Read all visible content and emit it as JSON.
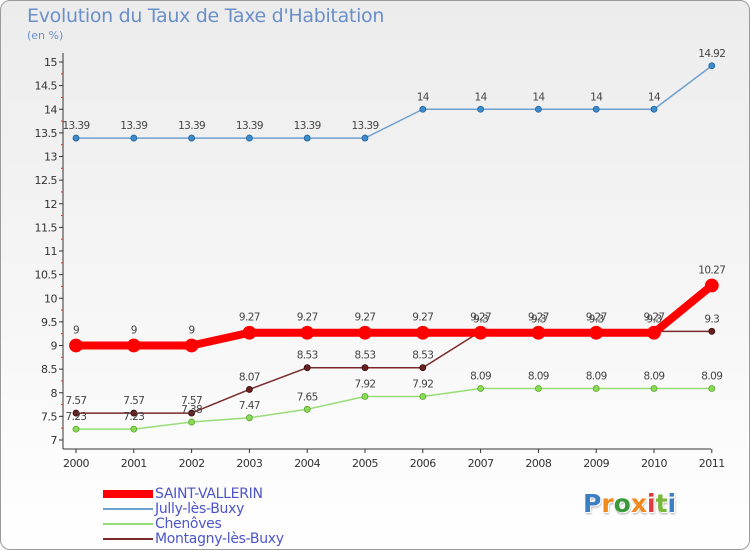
{
  "title": "Evolution du Taux de Taxe d'Habitation",
  "subtitle": "(en %)",
  "chart_data": {
    "type": "line",
    "title": "Evolution du Taux de Taxe d'Habitation",
    "ylabel": "(en %)",
    "xlabel": "",
    "categories": [
      "2000",
      "2001",
      "2002",
      "2003",
      "2004",
      "2005",
      "2006",
      "2007",
      "2008",
      "2009",
      "2010",
      "2011"
    ],
    "ylim": [
      7,
      15
    ],
    "yticks": [
      "7",
      "7.5",
      "8",
      "8.5",
      "9",
      "9.5",
      "10",
      "10.5",
      "11",
      "11.5",
      "12",
      "12.5",
      "13",
      "13.5",
      "14",
      "14.5",
      "15"
    ],
    "grid": false,
    "legend_position": "bottom-left",
    "series": [
      {
        "name": "SAINT-VALLERIN",
        "color": "#ff0000",
        "values": [
          9,
          9,
          9,
          9.27,
          9.27,
          9.27,
          9.27,
          9.27,
          9.27,
          9.27,
          9.27,
          10.27
        ],
        "labels": [
          "9",
          "9",
          "9",
          "9.27",
          "9.27",
          "9.27",
          "9.27",
          "9.27",
          "9.27",
          "9.27",
          "9.27",
          "10.27"
        ]
      },
      {
        "name": "Jully-lès-Buxy",
        "color": "#6ea0d0",
        "values": [
          13.39,
          13.39,
          13.39,
          13.39,
          13.39,
          13.39,
          14,
          14,
          14,
          14,
          14,
          14.92
        ],
        "labels": [
          "13.39",
          "13.39",
          "13.39",
          "13.39",
          "13.39",
          "13.39",
          "14",
          "14",
          "14",
          "14",
          "14",
          "14.92"
        ]
      },
      {
        "name": "Chenôves",
        "color": "#99dd77",
        "values": [
          7.23,
          7.23,
          7.38,
          7.47,
          7.65,
          7.92,
          7.92,
          8.09,
          8.09,
          8.09,
          8.09,
          8.09
        ],
        "labels": [
          "7.23",
          "7.23",
          "7.38",
          "7.47",
          "7.65",
          "7.92",
          "7.92",
          "8.09",
          "8.09",
          "8.09",
          "8.09",
          "8.09"
        ]
      },
      {
        "name": "Montagny-lès-Buxy",
        "color": "#7a2a2a",
        "values": [
          7.57,
          7.57,
          7.57,
          8.07,
          8.53,
          8.53,
          8.53,
          9.3,
          9.3,
          9.3,
          9.3,
          9.3
        ],
        "labels": [
          "7.57",
          "7.57",
          "7.57",
          "8.07",
          "8.53",
          "8.53",
          "8.53",
          "9.3",
          "9.3",
          "9.3",
          "9.3",
          "9.3"
        ]
      }
    ]
  },
  "legend": [
    {
      "label": "SAINT-VALLERIN",
      "color": "#ff0000"
    },
    {
      "label": "Jully-lès-Buxy",
      "color": "#6ea0d0"
    },
    {
      "label": "Chenôves",
      "color": "#99dd77"
    },
    {
      "label": "Montagny-lès-Buxy",
      "color": "#7a2a2a"
    }
  ],
  "logo": {
    "letters": [
      "P",
      "r",
      "o",
      "x",
      "i",
      "t",
      "i"
    ],
    "colors": [
      "#3a7fc4",
      "#f08a1c",
      "#3a9a3a",
      "#f08a1c",
      "#e23a3a",
      "#7ab83a",
      "#3a7fc4"
    ]
  }
}
